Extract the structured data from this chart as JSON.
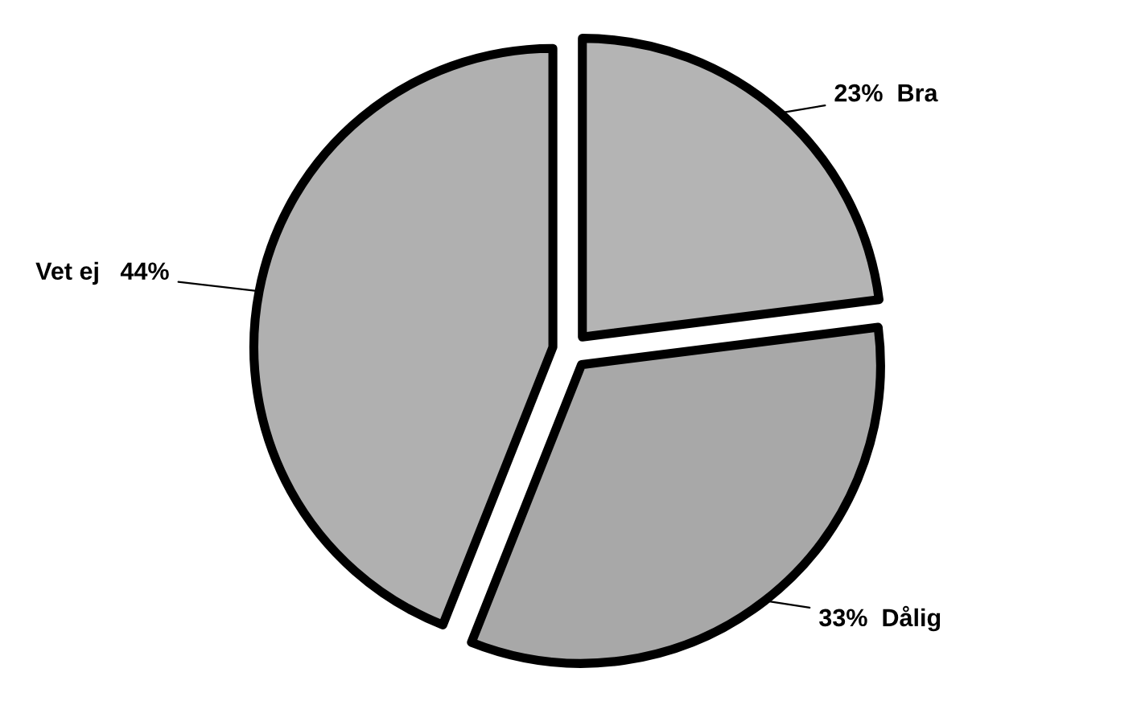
{
  "chart_data": {
    "type": "pie",
    "categories": [
      "Bra",
      "Dålig",
      "Vet ej"
    ],
    "values": [
      23,
      33,
      44
    ],
    "value_labels": [
      "23%",
      "33%",
      "44%"
    ],
    "colors": [
      "#b4b4b4",
      "#a8a8a8",
      "#b0b0b0"
    ],
    "legend": false
  }
}
